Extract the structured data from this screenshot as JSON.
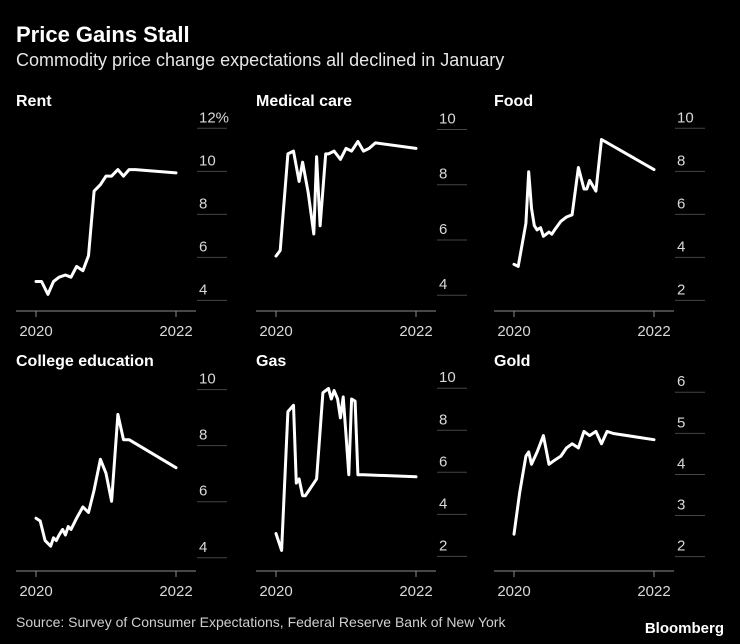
{
  "header": {
    "title": "Price Gains Stall",
    "subtitle": "Commodity price change expectations all declined in January"
  },
  "footer": {
    "source": "Source: Survey of Consumer Expectations, Federal Reserve Bank of New York",
    "brand": "Bloomberg"
  },
  "colors": {
    "background": "#000000",
    "line": "#ffffff",
    "axis": "#8c8c8c",
    "tick_text": "#d9d9d9"
  },
  "chart_data": [
    {
      "type": "line",
      "title": "Rent",
      "unit": "%",
      "xlim": [
        2020,
        2022.2
      ],
      "ylim": [
        3.6,
        12.2
      ],
      "yticks": [
        4,
        6,
        8,
        10,
        12
      ],
      "ytick_labels": [
        "4",
        "6",
        "8",
        "10",
        "12%"
      ],
      "xticks": [
        2020,
        2022
      ],
      "xtick_labels": [
        "2020",
        "2022"
      ],
      "series": [
        {
          "name": "Rent",
          "x": [
            2020.0,
            2020.08,
            2020.17,
            2020.25,
            2020.33,
            2020.42,
            2020.5,
            2020.58,
            2020.67,
            2020.75,
            2020.83,
            2020.92,
            2021.0,
            2021.08,
            2021.17,
            2021.25,
            2021.33,
            2021.42,
            2022.0
          ],
          "y": [
            4.6,
            4.6,
            4.0,
            4.6,
            4.8,
            4.9,
            4.8,
            5.3,
            5.1,
            5.8,
            8.8,
            9.1,
            9.5,
            9.5,
            9.8,
            9.5,
            9.8,
            9.8,
            9.65
          ]
        }
      ]
    },
    {
      "type": "line",
      "title": "Medical care",
      "unit": "%",
      "xlim": [
        2020,
        2022.2
      ],
      "ylim": [
        3.5,
        10.2
      ],
      "yticks": [
        4,
        6,
        8,
        10
      ],
      "ytick_labels": [
        "4",
        "6",
        "8",
        "10"
      ],
      "xticks": [
        2020,
        2022
      ],
      "xtick_labels": [
        "2020",
        "2022"
      ],
      "series": [
        {
          "name": "Medical care",
          "x": [
            2020.0,
            2020.06,
            2020.17,
            2020.25,
            2020.33,
            2020.38,
            2020.46,
            2020.54,
            2020.58,
            2020.63,
            2020.71,
            2020.75,
            2020.83,
            2020.92,
            2021.0,
            2021.08,
            2021.17,
            2021.25,
            2021.33,
            2021.42,
            2022.0
          ],
          "y": [
            5.2,
            5.4,
            8.9,
            9.0,
            7.9,
            8.6,
            7.5,
            6.0,
            8.8,
            6.3,
            8.9,
            8.9,
            9.0,
            8.7,
            9.1,
            9.0,
            9.35,
            9.0,
            9.1,
            9.3,
            9.1
          ]
        }
      ]
    },
    {
      "type": "line",
      "title": "Food",
      "unit": "%",
      "xlim": [
        2020,
        2022.2
      ],
      "ylim": [
        1.6,
        10.2
      ],
      "yticks": [
        2,
        4,
        6,
        8,
        10
      ],
      "ytick_labels": [
        "2",
        "4",
        "6",
        "8",
        "10"
      ],
      "xticks": [
        2020,
        2022
      ],
      "xtick_labels": [
        "2020",
        "2022"
      ],
      "series": [
        {
          "name": "Food",
          "x": [
            2020.0,
            2020.06,
            2020.17,
            2020.21,
            2020.25,
            2020.29,
            2020.33,
            2020.38,
            2020.42,
            2020.46,
            2020.5,
            2020.54,
            2020.58,
            2020.67,
            2020.75,
            2020.83,
            2020.92,
            2021.0,
            2021.04,
            2021.08,
            2021.17,
            2021.25,
            2022.0
          ],
          "y": [
            3.4,
            3.3,
            5.3,
            7.7,
            6.0,
            5.2,
            5.0,
            5.1,
            4.7,
            4.8,
            4.9,
            4.8,
            5.0,
            5.4,
            5.6,
            5.7,
            7.9,
            6.9,
            6.9,
            7.3,
            6.8,
            9.2,
            7.8
          ]
        }
      ]
    },
    {
      "type": "line",
      "title": "College education",
      "unit": "%",
      "xlim": [
        2020,
        2022.2
      ],
      "ylim": [
        3.6,
        10.2
      ],
      "yticks": [
        4,
        6,
        8,
        10
      ],
      "ytick_labels": [
        "4",
        "6",
        "8",
        "10"
      ],
      "xticks": [
        2020,
        2022
      ],
      "xtick_labels": [
        "2020",
        "2022"
      ],
      "series": [
        {
          "name": "College education",
          "x": [
            2020.0,
            2020.06,
            2020.13,
            2020.21,
            2020.25,
            2020.29,
            2020.33,
            2020.38,
            2020.42,
            2020.46,
            2020.5,
            2020.58,
            2020.67,
            2020.75,
            2020.83,
            2020.92,
            2021.0,
            2021.08,
            2021.17,
            2021.25,
            2021.33,
            2022.0
          ],
          "y": [
            5.2,
            5.1,
            4.4,
            4.2,
            4.5,
            4.4,
            4.6,
            4.8,
            4.6,
            4.9,
            4.8,
            5.2,
            5.6,
            5.4,
            6.2,
            7.3,
            6.8,
            5.8,
            8.9,
            8.0,
            8.0,
            7.0
          ]
        }
      ]
    },
    {
      "type": "line",
      "title": "Gas",
      "unit": "%",
      "xlim": [
        2020,
        2022.2
      ],
      "ylim": [
        1.4,
        10.2
      ],
      "yticks": [
        2,
        4,
        6,
        8,
        10
      ],
      "ytick_labels": [
        "2",
        "4",
        "6",
        "8",
        "10"
      ],
      "xticks": [
        2020,
        2022
      ],
      "xtick_labels": [
        "2020",
        "2022"
      ],
      "series": [
        {
          "name": "Gas",
          "x": [
            2020.0,
            2020.08,
            2020.17,
            2020.25,
            2020.29,
            2020.33,
            2020.38,
            2020.42,
            2020.46,
            2020.5,
            2020.58,
            2020.67,
            2020.75,
            2020.79,
            2020.83,
            2020.88,
            2020.92,
            2020.96,
            2021.0,
            2021.04,
            2021.08,
            2021.13,
            2021.17,
            2021.21,
            2021.25,
            2022.0
          ],
          "y": [
            2.8,
            2.0,
            8.6,
            8.9,
            5.2,
            5.4,
            4.6,
            4.6,
            4.8,
            5.0,
            5.4,
            9.5,
            9.7,
            9.2,
            9.6,
            9.2,
            8.3,
            9.3,
            7.5,
            5.6,
            9.2,
            9.1,
            5.6,
            5.6,
            5.6,
            5.5
          ]
        }
      ]
    },
    {
      "type": "line",
      "title": "Gold",
      "unit": "%",
      "xlim": [
        2020,
        2022.2
      ],
      "ylim": [
        1.7,
        6.2
      ],
      "yticks": [
        2,
        3,
        4,
        5,
        6
      ],
      "ytick_labels": [
        "2",
        "3",
        "4",
        "5",
        "6"
      ],
      "xticks": [
        2020,
        2022
      ],
      "xtick_labels": [
        "2020",
        "2022"
      ],
      "series": [
        {
          "name": "Gold",
          "x": [
            2020.0,
            2020.08,
            2020.17,
            2020.21,
            2020.25,
            2020.33,
            2020.42,
            2020.5,
            2020.58,
            2020.67,
            2020.75,
            2020.83,
            2020.92,
            2021.0,
            2021.08,
            2021.17,
            2021.25,
            2021.33,
            2021.42,
            2022.0
          ],
          "y": [
            2.4,
            3.4,
            4.3,
            4.4,
            4.1,
            4.4,
            4.8,
            4.1,
            4.2,
            4.3,
            4.5,
            4.6,
            4.5,
            4.9,
            4.8,
            4.9,
            4.6,
            4.9,
            4.85,
            4.7
          ]
        }
      ]
    }
  ]
}
